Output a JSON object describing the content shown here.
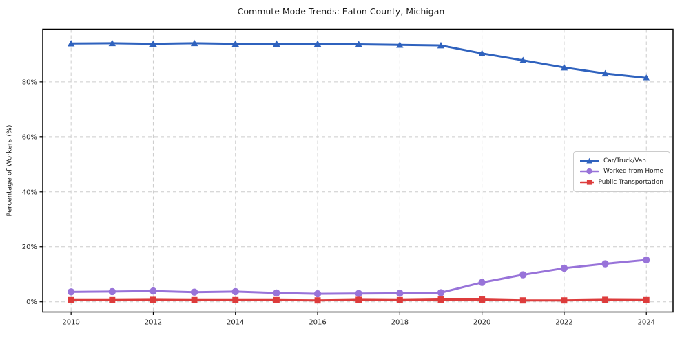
{
  "title": "Commute Mode Trends: Eaton County, Michigan",
  "chart_data": {
    "type": "line",
    "x": [
      2010,
      2011,
      2012,
      2013,
      2014,
      2015,
      2016,
      2017,
      2018,
      2019,
      2020,
      2021,
      2022,
      2023,
      2024
    ],
    "series": [
      {
        "name": "Car/Truck/Van",
        "color": "#2f62be",
        "marker": "triangle",
        "values": [
          93.9,
          94.0,
          93.8,
          94.0,
          93.8,
          93.8,
          93.8,
          93.6,
          93.4,
          93.2,
          90.3,
          87.8,
          85.2,
          83.0,
          81.4
        ]
      },
      {
        "name": "Worked from Home",
        "color": "#9873d9",
        "marker": "circle",
        "values": [
          3.6,
          3.7,
          3.9,
          3.5,
          3.7,
          3.2,
          2.9,
          3.0,
          3.1,
          3.3,
          7.0,
          9.8,
          12.2,
          13.8,
          15.2
        ]
      },
      {
        "name": "Public Transportation",
        "color": "#dd3c3c",
        "marker": "square",
        "values": [
          0.6,
          0.6,
          0.7,
          0.6,
          0.6,
          0.6,
          0.5,
          0.7,
          0.6,
          0.8,
          0.8,
          0.5,
          0.5,
          0.7,
          0.6
        ]
      }
    ],
    "title": "Commute Mode Trends: Eaton County, Michigan",
    "xlabel": "",
    "ylabel": "Percentage of Workers (%)",
    "xticks": [
      2010,
      2012,
      2014,
      2016,
      2018,
      2020,
      2022,
      2024
    ],
    "xtick_labels": [
      "2010",
      "2012",
      "2014",
      "2016",
      "2018",
      "2020",
      "2022",
      "2024"
    ],
    "yticks": [
      0,
      20,
      40,
      60,
      80
    ],
    "ytick_labels": [
      "0%",
      "20%",
      "40%",
      "60%",
      "80%"
    ],
    "xlim": [
      2009.31,
      2024.65
    ],
    "ylim": [
      -3.7,
      99.1
    ],
    "grid": true,
    "grid_style": "dashed",
    "grid_color": "#cccccc",
    "frame_color": "#000000",
    "background": "#ffffff",
    "legend_position": "center-right"
  }
}
